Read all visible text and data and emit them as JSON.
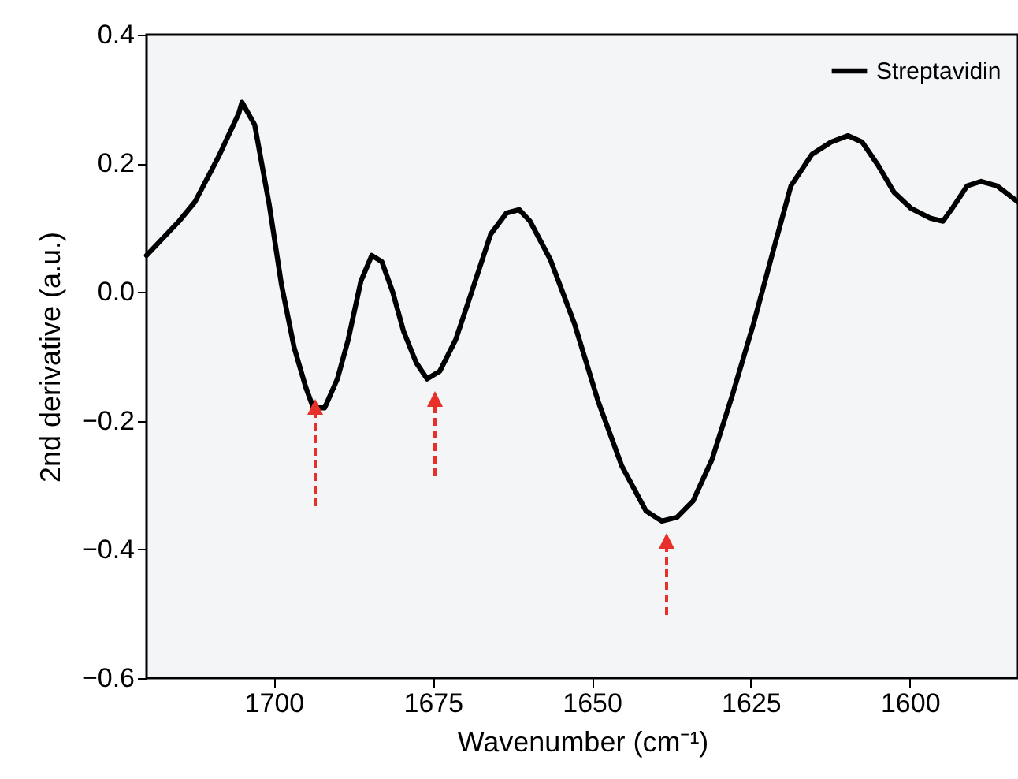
{
  "chart_data": {
    "type": "line",
    "xlabel": "Wavenumber (cm⁻¹)",
    "ylabel": "2nd derivative (a.u.)",
    "x": [
      1720,
      1714.9,
      1712.4,
      1708.7,
      1705.5,
      1705,
      1703,
      1700.7,
      1698.8,
      1696.8,
      1695,
      1693.8,
      1692,
      1690,
      1688.3,
      1686.3,
      1684.6,
      1683,
      1681.3,
      1679.6,
      1677.6,
      1675.9,
      1673.9,
      1671.4,
      1668.9,
      1665.9,
      1663.4,
      1661.4,
      1659.7,
      1656.5,
      1652.7,
      1649,
      1645.3,
      1641.5,
      1639,
      1636.6,
      1634.1,
      1631.1,
      1627.9,
      1624.6,
      1621.6,
      1618.7,
      1615.4,
      1612.4,
      1609.7,
      1607.5,
      1605,
      1602.5,
      1599.8,
      1596.8,
      1594.8,
      1593,
      1591,
      1588.8,
      1586.3,
      1583
    ],
    "series": [
      {
        "name": "Streptavidin",
        "color": "#000000",
        "values": [
          0.057,
          0.11,
          0.14,
          0.21,
          0.278,
          0.295,
          0.26,
          0.135,
          0.012,
          -0.086,
          -0.147,
          -0.18,
          -0.18,
          -0.135,
          -0.074,
          0.017,
          0.057,
          0.047,
          0,
          -0.061,
          -0.11,
          -0.135,
          -0.123,
          -0.074,
          0,
          0.09,
          0.123,
          0.128,
          0.11,
          0.05,
          -0.05,
          -0.17,
          -0.27,
          -0.34,
          -0.356,
          -0.35,
          -0.325,
          -0.26,
          -0.16,
          -0.05,
          0.06,
          0.165,
          0.214,
          0.233,
          0.243,
          0.233,
          0.197,
          0.155,
          0.13,
          0.115,
          0.11,
          0.135,
          0.165,
          0.172,
          0.165,
          0.14
        ]
      }
    ],
    "xlim": [
      1720,
      1583
    ],
    "xticks": [
      1700,
      1675,
      1650,
      1625,
      1600
    ],
    "ylim": [
      -0.6,
      0.4
    ],
    "yticks": [
      {
        "value": 0.4,
        "label": "0.4"
      },
      {
        "value": 0.2,
        "label": "0.2"
      },
      {
        "value": 0,
        "label": "0.0"
      },
      {
        "value": -0.2,
        "label": "−0.2"
      },
      {
        "value": -0.4,
        "label": "−0.4"
      },
      {
        "value": -0.6,
        "label": "−0.6"
      }
    ],
    "legend": "top right",
    "grid": false,
    "line_style": "solid",
    "marker": "none"
  }
}
